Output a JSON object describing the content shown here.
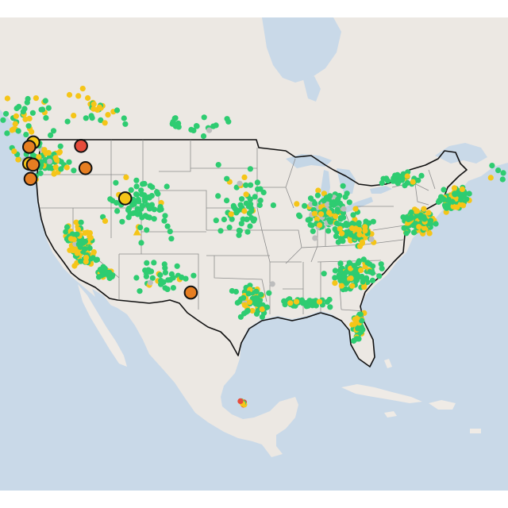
{
  "map": {
    "view": "contiguous-united-states",
    "basemap_style": "light-gray",
    "colors": {
      "ocean": "#c9d9e8",
      "land": "#ece8e3",
      "land_foreign": "#efebe6",
      "lakes": "#c4d6e6",
      "country_border": "#111111",
      "state_border": "#8d8d8d",
      "background": "#ffffff"
    },
    "legend_visible": false,
    "category_colors": {
      "good": "#2ecc71",
      "moderate": "#f5c518",
      "unhealthy_sensitive": "#e67e22",
      "unhealthy": "#e74c3c",
      "no_data": "#bdbdbd"
    },
    "highlighted_sites": [
      {
        "category": "moderate",
        "lon": -122.0,
        "lat": 48.7
      },
      {
        "category": "unhealthy_sensitive",
        "lon": -122.6,
        "lat": 48.2
      },
      {
        "category": "unhealthy",
        "lon": -116.8,
        "lat": 48.3
      },
      {
        "category": "moderate",
        "lon": -123.2,
        "lat": 46.3
      },
      {
        "category": "unhealthy_sensitive",
        "lon": -122.8,
        "lat": 46.2
      },
      {
        "category": "unhealthy_sensitive",
        "lon": -116.9,
        "lat": 45.8
      },
      {
        "category": "unhealthy_sensitive",
        "lon": -123.6,
        "lat": 44.6
      },
      {
        "category": "moderate",
        "lon": -113.0,
        "lat": 42.4
      },
      {
        "category": "unhealthy_sensitive",
        "lon": -106.3,
        "lat": 31.8
      }
    ],
    "triangle_markers": [
      {
        "category": "moderate",
        "lon": -112.3,
        "lat": 38.6
      },
      {
        "category": "good",
        "lon": -111.9,
        "lat": 34.2
      }
    ],
    "site_clusters": [
      {
        "name": "pacific-northwest",
        "lon": -121.5,
        "lat": 46.5,
        "spread_lon": 4.5,
        "spread_lat": 2.6,
        "count": 95,
        "mix": {
          "good": 0.58,
          "moderate": 0.38,
          "no_data": 0.04
        }
      },
      {
        "name": "british-columbia",
        "lon": -122.0,
        "lat": 51.5,
        "spread_lon": 6.5,
        "spread_lat": 3.5,
        "count": 42,
        "mix": {
          "good": 0.55,
          "moderate": 0.45
        }
      },
      {
        "name": "alberta",
        "lon": -113.5,
        "lat": 53.0,
        "spread_lon": 4.0,
        "spread_lat": 3.5,
        "count": 26,
        "mix": {
          "good": 0.5,
          "moderate": 0.5
        }
      },
      {
        "name": "prairies",
        "lon": -104.0,
        "lat": 50.5,
        "spread_lon": 6.0,
        "spread_lat": 1.8,
        "count": 20,
        "mix": {
          "good": 0.9,
          "moderate": 0.05,
          "no_data": 0.05
        }
      },
      {
        "name": "california",
        "lon": -120.0,
        "lat": 37.2,
        "spread_lon": 2.4,
        "spread_lat": 3.2,
        "count": 150,
        "mix": {
          "good": 0.42,
          "moderate": 0.55,
          "no_data": 0.03
        }
      },
      {
        "name": "southern-california",
        "lon": -117.5,
        "lat": 34.0,
        "spread_lon": 1.6,
        "spread_lat": 0.8,
        "count": 40,
        "mix": {
          "good": 0.75,
          "moderate": 0.25
        }
      },
      {
        "name": "mountain-west",
        "lon": -111.0,
        "lat": 41.5,
        "spread_lon": 6.0,
        "spread_lat": 5.0,
        "count": 75,
        "mix": {
          "good": 0.84,
          "moderate": 0.13,
          "no_data": 0.03
        }
      },
      {
        "name": "southwest",
        "lon": -110.0,
        "lat": 33.5,
        "spread_lon": 5.0,
        "spread_lat": 2.2,
        "count": 35,
        "mix": {
          "good": 0.78,
          "moderate": 0.12,
          "no_data": 0.1
        }
      },
      {
        "name": "great-plains",
        "lon": -99.0,
        "lat": 41.5,
        "spread_lon": 4.5,
        "spread_lat": 6.0,
        "count": 60,
        "mix": {
          "good": 0.82,
          "moderate": 0.14,
          "no_data": 0.04
        }
      },
      {
        "name": "texas",
        "lon": -97.5,
        "lat": 30.8,
        "spread_lon": 3.5,
        "spread_lat": 2.6,
        "count": 70,
        "mix": {
          "good": 0.75,
          "moderate": 0.22,
          "no_data": 0.03
        }
      },
      {
        "name": "gulf-coast",
        "lon": -90.0,
        "lat": 30.6,
        "spread_lon": 4.5,
        "spread_lat": 0.7,
        "count": 40,
        "mix": {
          "good": 0.8,
          "moderate": 0.2
        }
      },
      {
        "name": "midwest",
        "lon": -88.5,
        "lat": 41.0,
        "spread_lon": 4.5,
        "spread_lat": 3.6,
        "count": 130,
        "mix": {
          "good": 0.72,
          "moderate": 0.16,
          "no_data": 0.12
        }
      },
      {
        "name": "ohio-valley",
        "lon": -84.5,
        "lat": 38.6,
        "spread_lon": 3.5,
        "spread_lat": 2.0,
        "count": 80,
        "mix": {
          "good": 0.72,
          "moderate": 0.25,
          "no_data": 0.03
        }
      },
      {
        "name": "southeast",
        "lon": -84.0,
        "lat": 34.0,
        "spread_lon": 4.5,
        "spread_lat": 2.5,
        "count": 95,
        "mix": {
          "good": 0.75,
          "moderate": 0.25
        }
      },
      {
        "name": "florida",
        "lon": -81.8,
        "lat": 28.2,
        "spread_lon": 1.3,
        "spread_lat": 2.6,
        "count": 38,
        "mix": {
          "good": 0.7,
          "moderate": 0.3
        }
      },
      {
        "name": "mid-atlantic",
        "lon": -77.0,
        "lat": 39.8,
        "spread_lon": 2.5,
        "spread_lat": 1.8,
        "count": 120,
        "mix": {
          "good": 0.68,
          "moderate": 0.32
        }
      },
      {
        "name": "northeast",
        "lon": -73.5,
        "lat": 42.2,
        "spread_lon": 2.6,
        "spread_lat": 1.6,
        "count": 100,
        "mix": {
          "good": 0.72,
          "moderate": 0.28
        }
      },
      {
        "name": "new-england-maritimes",
        "lon": -67.0,
        "lat": 45.5,
        "spread_lon": 4.0,
        "spread_lat": 2.0,
        "count": 30,
        "mix": {
          "good": 0.78,
          "moderate": 0.22
        }
      },
      {
        "name": "great-lakes-canada",
        "lon": -80.5,
        "lat": 44.5,
        "spread_lon": 3.0,
        "spread_lat": 1.3,
        "count": 35,
        "mix": {
          "good": 0.85,
          "moderate": 0.15
        }
      },
      {
        "name": "central-mexico",
        "lon": -99.3,
        "lat": 19.4,
        "spread_lon": 0.6,
        "spread_lat": 0.4,
        "count": 12,
        "mix": {
          "good": 0.2,
          "moderate": 0.5,
          "unhealthy": 0.3
        }
      }
    ]
  }
}
